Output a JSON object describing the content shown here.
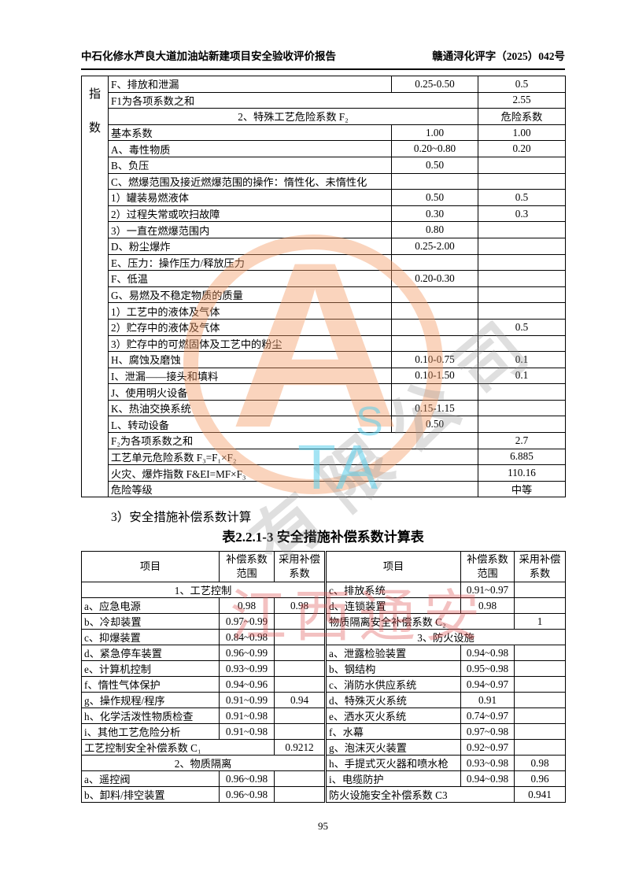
{
  "header": {
    "left": "中石化修水芦良大道加油站新建项目安全验收评价报告",
    "right": "赣通浔化评字（2025）042号"
  },
  "section_heading": "3）安全措施补偿系数计算",
  "table2_title": "表2.2.1-3  安全措施补偿系数计算表",
  "page_number": "95",
  "watermark": {
    "orange_logo_letter": "A",
    "gray_text": "有限公司",
    "cyan_text_top": "S",
    "cyan_text": "TA",
    "red_text": "江西通安",
    "orange_color": "#F39862",
    "gray_color": "#969696",
    "cyan_color": "#5ACDEB",
    "red_color": "#DE4D4D"
  },
  "table1": {
    "rows": [
      [
        {
          "t": "指\n数",
          "rs": 26,
          "cls": "strip",
          "n": "index-strip-label"
        },
        {
          "t": "F、排放和泄漏"
        },
        {
          "t": "0.25-0.50",
          "cls": "c"
        },
        {
          "t": "0.5",
          "cls": "c"
        }
      ],
      [
        {
          "t": "F1为各项系数之和",
          "s": 2
        },
        {
          "t": "2.55",
          "cls": "c"
        }
      ],
      [
        {
          "t": "2、特殊工艺危险系数 F₂",
          "s": 2,
          "cls": "c"
        },
        {
          "t": "危险系数",
          "cls": "c"
        }
      ],
      [
        {
          "t": "基本系数"
        },
        {
          "t": "1.00",
          "cls": "c"
        },
        {
          "t": "1.00",
          "cls": "c"
        }
      ],
      [
        {
          "t": "A、毒性物质"
        },
        {
          "t": "0.20~0.80",
          "cls": "c"
        },
        {
          "t": "0.20",
          "cls": "c"
        }
      ],
      [
        {
          "t": "B、负压"
        },
        {
          "t": "0.50",
          "cls": "c"
        },
        {
          "t": ""
        }
      ],
      [
        {
          "t": "C、燃爆范围及接近燃爆范围的操作：惰性化、未惰性化"
        },
        {
          "t": ""
        },
        {
          "t": ""
        }
      ],
      [
        {
          "t": "1）罐装易燃液体"
        },
        {
          "t": "0.50",
          "cls": "c"
        },
        {
          "t": "0.5",
          "cls": "c"
        }
      ],
      [
        {
          "t": "2）过程失常或吹扫故障"
        },
        {
          "t": "0.30",
          "cls": "c"
        },
        {
          "t": "0.3",
          "cls": "c"
        }
      ],
      [
        {
          "t": "3）一直在燃爆范围内"
        },
        {
          "t": "0.80",
          "cls": "c"
        },
        {
          "t": ""
        }
      ],
      [
        {
          "t": "D、粉尘爆炸"
        },
        {
          "t": "0.25-2.00",
          "cls": "c"
        },
        {
          "t": ""
        }
      ],
      [
        {
          "t": "E、压力：操作压力/释放压力"
        },
        {
          "t": ""
        },
        {
          "t": ""
        }
      ],
      [
        {
          "t": "F、低温"
        },
        {
          "t": "0.20-0.30",
          "cls": "c"
        },
        {
          "t": ""
        }
      ],
      [
        {
          "t": "G、易燃及不稳定物质的质量"
        },
        {
          "t": ""
        },
        {
          "t": ""
        }
      ],
      [
        {
          "t": "1）工艺中的液体及气体"
        },
        {
          "t": ""
        },
        {
          "t": ""
        }
      ],
      [
        {
          "t": "2）贮存中的液体及气体"
        },
        {
          "t": ""
        },
        {
          "t": "0.5",
          "cls": "c"
        }
      ],
      [
        {
          "t": "3）贮存中的可燃固体及工艺中的粉尘"
        },
        {
          "t": ""
        },
        {
          "t": ""
        }
      ],
      [
        {
          "t": "H、腐蚀及磨蚀"
        },
        {
          "t": "0.10-0.75",
          "cls": "c"
        },
        {
          "t": "0.1",
          "cls": "c"
        }
      ],
      [
        {
          "t": "I、泄漏——接头和填料"
        },
        {
          "t": "0.10-1.50",
          "cls": "c"
        },
        {
          "t": "0.1",
          "cls": "c"
        }
      ],
      [
        {
          "t": "J、使用明火设备"
        },
        {
          "t": ""
        },
        {
          "t": ""
        }
      ],
      [
        {
          "t": "K、热油交换系统"
        },
        {
          "t": "0.15-1.15",
          "cls": "c"
        },
        {
          "t": ""
        }
      ],
      [
        {
          "t": "L、转动设备"
        },
        {
          "t": "0.50",
          "cls": "c"
        },
        {
          "t": ""
        }
      ],
      [
        {
          "t": "F₂为各项系数之和",
          "s": 2
        },
        {
          "t": "2.7",
          "cls": "c"
        }
      ],
      [
        {
          "t": "工艺单元危险系数 F₃=F₁×F₂",
          "s": 2
        },
        {
          "t": "6.885",
          "cls": "c"
        }
      ],
      [
        {
          "t": "火灾、爆炸指数 F&EI=MF×F₃",
          "s": 2
        },
        {
          "t": "110.16",
          "cls": "c"
        }
      ],
      [
        {
          "t": "危险等级",
          "s": 2
        },
        {
          "t": "中等",
          "cls": "c"
        }
      ]
    ]
  },
  "table2": {
    "rows": [
      [
        {
          "t": "项目",
          "cls": "hd"
        },
        {
          "t": "补偿系数范围",
          "cls": "hd"
        },
        {
          "t": "采用补偿系数",
          "cls": "hd"
        },
        {
          "t": "项目",
          "cls": "hd dl"
        },
        {
          "t": "补偿系数范围",
          "cls": "hd"
        },
        {
          "t": "采用补偿系数",
          "cls": "hd"
        }
      ],
      [
        {
          "t": "1、工艺控制",
          "s": 3,
          "cls": "c"
        },
        {
          "t": "c、排放系统",
          "cls": "dl"
        },
        {
          "t": "0.91~0.97",
          "cls": "c"
        },
        {
          "t": ""
        }
      ],
      [
        {
          "t": "a、应急电源"
        },
        {
          "t": "0.98",
          "cls": "c"
        },
        {
          "t": "0.98",
          "cls": "c"
        },
        {
          "t": "d、连锁装置",
          "cls": "dl"
        },
        {
          "t": "0.98",
          "cls": "c"
        },
        {
          "t": ""
        }
      ],
      [
        {
          "t": "b、冷却装置"
        },
        {
          "t": "0.97~0.99",
          "cls": "c"
        },
        {
          "t": ""
        },
        {
          "t": "物质隔离安全补偿系数 C₂",
          "s": 2,
          "cls": "dl"
        },
        {
          "t": "1",
          "cls": "c"
        }
      ],
      [
        {
          "t": "c、抑爆装置"
        },
        {
          "t": "0.84~0.98",
          "cls": "c"
        },
        {
          "t": ""
        },
        {
          "t": "3、防火设施",
          "s": 3,
          "cls": "c dl"
        }
      ],
      [
        {
          "t": "d、紧急停车装置"
        },
        {
          "t": "0.96~0.99",
          "cls": "c"
        },
        {
          "t": ""
        },
        {
          "t": "a、泄露检验装置",
          "cls": "dl"
        },
        {
          "t": "0.94~0.98",
          "cls": "c"
        },
        {
          "t": ""
        }
      ],
      [
        {
          "t": "e、计算机控制"
        },
        {
          "t": "0.93~0.99",
          "cls": "c"
        },
        {
          "t": ""
        },
        {
          "t": "b、钢结构",
          "cls": "dl"
        },
        {
          "t": "0.95~0.98",
          "cls": "c"
        },
        {
          "t": ""
        }
      ],
      [
        {
          "t": "f、惰性气体保护"
        },
        {
          "t": "0.94~0.96",
          "cls": "c"
        },
        {
          "t": ""
        },
        {
          "t": "c、消防水供应系统",
          "cls": "dl"
        },
        {
          "t": "0.94~0.97",
          "cls": "c"
        },
        {
          "t": ""
        }
      ],
      [
        {
          "t": "g、操作规程/程序"
        },
        {
          "t": "0.91~0.99",
          "cls": "c"
        },
        {
          "t": "0.94",
          "cls": "c"
        },
        {
          "t": "d、特殊灭火系统",
          "cls": "dl"
        },
        {
          "t": "0.91",
          "cls": "c"
        },
        {
          "t": ""
        }
      ],
      [
        {
          "t": "h、化学活泼性物质检查"
        },
        {
          "t": "0.91~0.98",
          "cls": "c"
        },
        {
          "t": ""
        },
        {
          "t": "e、洒水灭火系统",
          "cls": "dl"
        },
        {
          "t": "0.74~0.97",
          "cls": "c"
        },
        {
          "t": ""
        }
      ],
      [
        {
          "t": "i、其他工艺危险分析"
        },
        {
          "t": "0.91~0.98",
          "cls": "c"
        },
        {
          "t": ""
        },
        {
          "t": "f、水幕",
          "cls": "dl"
        },
        {
          "t": "0.97~0.98",
          "cls": "c"
        },
        {
          "t": ""
        }
      ],
      [
        {
          "t": "工艺控制安全补偿系数 C₁",
          "s": 2
        },
        {
          "t": "0.9212",
          "cls": "c"
        },
        {
          "t": "g、泡沫灭火装置",
          "cls": "dl"
        },
        {
          "t": "0.92~0.97",
          "cls": "c"
        },
        {
          "t": ""
        }
      ],
      [
        {
          "t": "2、物质隔离",
          "s": 3,
          "cls": "c"
        },
        {
          "t": "h、手提式灭火器和喷水枪",
          "cls": "dl"
        },
        {
          "t": "0.93~0.98",
          "cls": "c"
        },
        {
          "t": "0.98",
          "cls": "c"
        }
      ],
      [
        {
          "t": "a、遥控阀"
        },
        {
          "t": "0.96~0.98",
          "cls": "c"
        },
        {
          "t": ""
        },
        {
          "t": "i、电缆防护",
          "cls": "dl"
        },
        {
          "t": "0.94~0.98",
          "cls": "c"
        },
        {
          "t": "0.96",
          "cls": "c"
        }
      ],
      [
        {
          "t": "b、卸料/排空装置"
        },
        {
          "t": "0.96~0.98",
          "cls": "c"
        },
        {
          "t": ""
        },
        {
          "t": "防火设施安全补偿系数 C3",
          "s": 2,
          "cls": "dl"
        },
        {
          "t": "0.941",
          "cls": "c"
        }
      ]
    ]
  }
}
